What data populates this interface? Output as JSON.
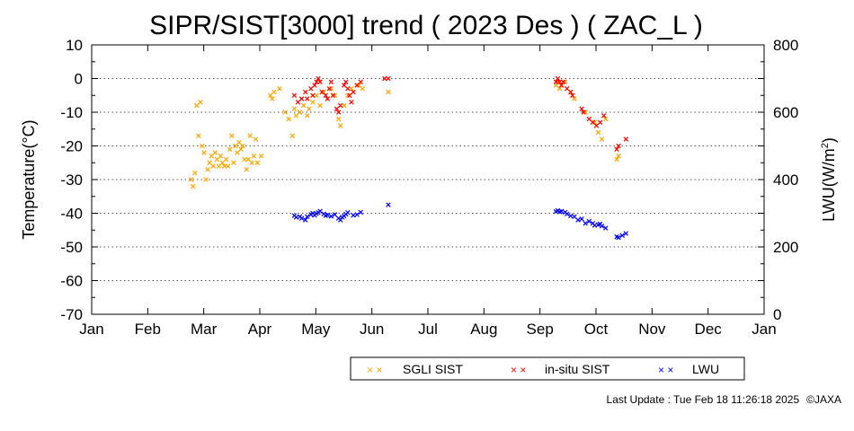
{
  "chart_data": {
    "type": "scatter",
    "title": "SIPR/SIST[3000] trend ( 2023 Des ) ( ZAC_L )",
    "ylabel": "Temperature(°C)",
    "y2label_main": "LWU(W/m",
    "y2label_sup": "2",
    "y2label_close": ")",
    "x_ticks": [
      "Jan",
      "Feb",
      "Mar",
      "Apr",
      "May",
      "Jun",
      "Jul",
      "Aug",
      "Sep",
      "Oct",
      "Nov",
      "Dec",
      "Jan"
    ],
    "ylim": [
      -70,
      10
    ],
    "y_ticks": [
      10,
      0,
      -10,
      -20,
      -30,
      -40,
      -50,
      -60,
      -70
    ],
    "y2lim": [
      0,
      800
    ],
    "y2_ticks": [
      800,
      600,
      400,
      200,
      0
    ],
    "grid": "horizontal dotted",
    "legend_position": "bottom",
    "colors": {
      "sgli": "#ffa500",
      "insitu": "#ff0000",
      "lwu": "#0000ff"
    },
    "series": [
      {
        "name": "SGLI SIST",
        "axis": "left",
        "color": "#ffa500",
        "points": [
          [
            "2023-02-24",
            -30
          ],
          [
            "2023-02-25",
            -32
          ],
          [
            "2023-02-26",
            -28
          ],
          [
            "2023-02-27",
            -8
          ],
          [
            "2023-02-28",
            -17
          ],
          [
            "2023-03-01",
            -7
          ],
          [
            "2023-03-02",
            -20
          ],
          [
            "2023-03-03",
            -22
          ],
          [
            "2023-03-04",
            -30
          ],
          [
            "2023-03-05",
            -27
          ],
          [
            "2023-03-06",
            -25
          ],
          [
            "2023-03-07",
            -23
          ],
          [
            "2023-03-08",
            -26
          ],
          [
            "2023-03-09",
            -22
          ],
          [
            "2023-03-10",
            -24
          ],
          [
            "2023-03-11",
            -26
          ],
          [
            "2023-03-12",
            -23
          ],
          [
            "2023-03-13",
            -25
          ],
          [
            "2023-03-14",
            -26
          ],
          [
            "2023-03-15",
            -24
          ],
          [
            "2023-03-16",
            -26
          ],
          [
            "2023-03-17",
            -21
          ],
          [
            "2023-03-18",
            -17
          ],
          [
            "2023-03-19",
            -25
          ],
          [
            "2023-03-20",
            -20
          ],
          [
            "2023-03-21",
            -22
          ],
          [
            "2023-03-22",
            -19
          ],
          [
            "2023-03-23",
            -21
          ],
          [
            "2023-03-24",
            -20
          ],
          [
            "2023-03-25",
            -24
          ],
          [
            "2023-03-26",
            -27
          ],
          [
            "2023-03-27",
            -24
          ],
          [
            "2023-03-28",
            -17
          ],
          [
            "2023-03-29",
            -25
          ],
          [
            "2023-03-30",
            -23
          ],
          [
            "2023-03-31",
            -18
          ],
          [
            "2023-04-01",
            -25
          ],
          [
            "2023-04-03",
            -23
          ],
          [
            "2023-04-08",
            -5
          ],
          [
            "2023-04-09",
            -6
          ],
          [
            "2023-04-10",
            -4
          ],
          [
            "2023-04-13",
            -3
          ],
          [
            "2023-04-16",
            -10
          ],
          [
            "2023-04-18",
            -12
          ],
          [
            "2023-04-20",
            -17
          ],
          [
            "2023-04-21",
            -9
          ],
          [
            "2023-04-22",
            -11
          ],
          [
            "2023-04-24",
            -10
          ],
          [
            "2023-04-26",
            -8
          ],
          [
            "2023-04-28",
            -11
          ],
          [
            "2023-04-29",
            -9
          ],
          [
            "2023-05-01",
            -7
          ],
          [
            "2023-05-03",
            -5
          ],
          [
            "2023-05-05",
            -8
          ],
          [
            "2023-05-07",
            -4
          ],
          [
            "2023-05-09",
            -6
          ],
          [
            "2023-05-11",
            -3
          ],
          [
            "2023-05-13",
            -5
          ],
          [
            "2023-05-15",
            -12
          ],
          [
            "2023-05-16",
            -14
          ],
          [
            "2023-05-18",
            -8
          ],
          [
            "2023-05-20",
            -5
          ],
          [
            "2023-05-22",
            -3
          ],
          [
            "2023-05-26",
            -2
          ],
          [
            "2023-05-28",
            -3
          ],
          [
            "2023-06-11",
            -4
          ],
          [
            "2023-09-10",
            -2
          ],
          [
            "2023-09-11",
            -1
          ],
          [
            "2023-09-12",
            -3
          ],
          [
            "2023-09-13",
            -2
          ],
          [
            "2023-09-15",
            -1
          ],
          [
            "2023-09-18",
            -4
          ],
          [
            "2023-09-20",
            -6
          ],
          [
            "2023-09-26",
            -10
          ],
          [
            "2023-10-01",
            -13
          ],
          [
            "2023-10-03",
            -16
          ],
          [
            "2023-10-05",
            -18
          ],
          [
            "2023-10-07",
            -12
          ],
          [
            "2023-10-13",
            -24
          ],
          [
            "2023-10-14",
            -23
          ]
        ]
      },
      {
        "name": "in-situ SIST",
        "axis": "left",
        "color": "#ff0000",
        "points": [
          [
            "2023-04-21",
            -5
          ],
          [
            "2023-04-23",
            -7
          ],
          [
            "2023-04-25",
            -6
          ],
          [
            "2023-04-27",
            -4
          ],
          [
            "2023-04-28",
            -6
          ],
          [
            "2023-04-30",
            -3
          ],
          [
            "2023-05-01",
            -5
          ],
          [
            "2023-05-02",
            -2
          ],
          [
            "2023-05-03",
            -1
          ],
          [
            "2023-05-04",
            0
          ],
          [
            "2023-05-05",
            -1
          ],
          [
            "2023-05-06",
            -4
          ],
          [
            "2023-05-08",
            -5
          ],
          [
            "2023-05-09",
            -6
          ],
          [
            "2023-05-10",
            -3
          ],
          [
            "2023-05-11",
            -1
          ],
          [
            "2023-05-12",
            -5
          ],
          [
            "2023-05-14",
            -9
          ],
          [
            "2023-05-15",
            -10
          ],
          [
            "2023-05-16",
            -8
          ],
          [
            "2023-05-18",
            -2
          ],
          [
            "2023-05-19",
            -1
          ],
          [
            "2023-05-20",
            -3
          ],
          [
            "2023-05-21",
            -5
          ],
          [
            "2023-05-22",
            -7
          ],
          [
            "2023-05-23",
            -4
          ],
          [
            "2023-05-25",
            -2
          ],
          [
            "2023-05-27",
            -1
          ],
          [
            "2023-06-09",
            0
          ],
          [
            "2023-06-11",
            0
          ],
          [
            "2023-09-10",
            -1
          ],
          [
            "2023-09-11",
            0
          ],
          [
            "2023-09-12",
            -1
          ],
          [
            "2023-09-13",
            -2
          ],
          [
            "2023-09-14",
            -1
          ],
          [
            "2023-09-16",
            -3
          ],
          [
            "2023-09-18",
            -4
          ],
          [
            "2023-09-19",
            -5
          ],
          [
            "2023-09-24",
            -9
          ],
          [
            "2023-09-25",
            -10
          ],
          [
            "2023-09-28",
            -12
          ],
          [
            "2023-09-30",
            -13
          ],
          [
            "2023-10-02",
            -14
          ],
          [
            "2023-10-04",
            -13
          ],
          [
            "2023-10-06",
            -11
          ],
          [
            "2023-10-13",
            -21
          ],
          [
            "2023-10-14",
            -20
          ],
          [
            "2023-10-18",
            -18
          ]
        ]
      },
      {
        "name": "LWU",
        "axis": "right",
        "color": "#0000ff",
        "points": [
          [
            "2023-04-21",
            293
          ],
          [
            "2023-04-22",
            288
          ],
          [
            "2023-04-24",
            290
          ],
          [
            "2023-04-25",
            285
          ],
          [
            "2023-04-27",
            280
          ],
          [
            "2023-04-28",
            290
          ],
          [
            "2023-04-30",
            296
          ],
          [
            "2023-05-01",
            300
          ],
          [
            "2023-05-02",
            294
          ],
          [
            "2023-05-03",
            299
          ],
          [
            "2023-05-04",
            302
          ],
          [
            "2023-05-05",
            306
          ],
          [
            "2023-05-07",
            298
          ],
          [
            "2023-05-08",
            293
          ],
          [
            "2023-05-09",
            295
          ],
          [
            "2023-05-11",
            291
          ],
          [
            "2023-05-13",
            296
          ],
          [
            "2023-05-15",
            285
          ],
          [
            "2023-05-16",
            280
          ],
          [
            "2023-05-17",
            288
          ],
          [
            "2023-05-18",
            292
          ],
          [
            "2023-05-19",
            297
          ],
          [
            "2023-05-20",
            302
          ],
          [
            "2023-05-23",
            294
          ],
          [
            "2023-05-25",
            296
          ],
          [
            "2023-05-27",
            303
          ],
          [
            "2023-06-11",
            325
          ],
          [
            "2023-09-10",
            305
          ],
          [
            "2023-09-11",
            308
          ],
          [
            "2023-09-12",
            304
          ],
          [
            "2023-09-13",
            306
          ],
          [
            "2023-09-15",
            303
          ],
          [
            "2023-09-16",
            298
          ],
          [
            "2023-09-18",
            292
          ],
          [
            "2023-09-20",
            290
          ],
          [
            "2023-09-22",
            280
          ],
          [
            "2023-09-24",
            283
          ],
          [
            "2023-09-26",
            270
          ],
          [
            "2023-09-28",
            276
          ],
          [
            "2023-09-30",
            270
          ],
          [
            "2023-10-01",
            264
          ],
          [
            "2023-10-03",
            266
          ],
          [
            "2023-10-04",
            268
          ],
          [
            "2023-10-05",
            262
          ],
          [
            "2023-10-07",
            256
          ],
          [
            "2023-10-13",
            230
          ],
          [
            "2023-10-14",
            228
          ],
          [
            "2023-10-16",
            234
          ],
          [
            "2023-10-18",
            240
          ]
        ]
      }
    ]
  },
  "footer": {
    "last_update": "Last Update : Tue Feb 18 11:26:18 2025",
    "copyright": "©JAXA"
  }
}
